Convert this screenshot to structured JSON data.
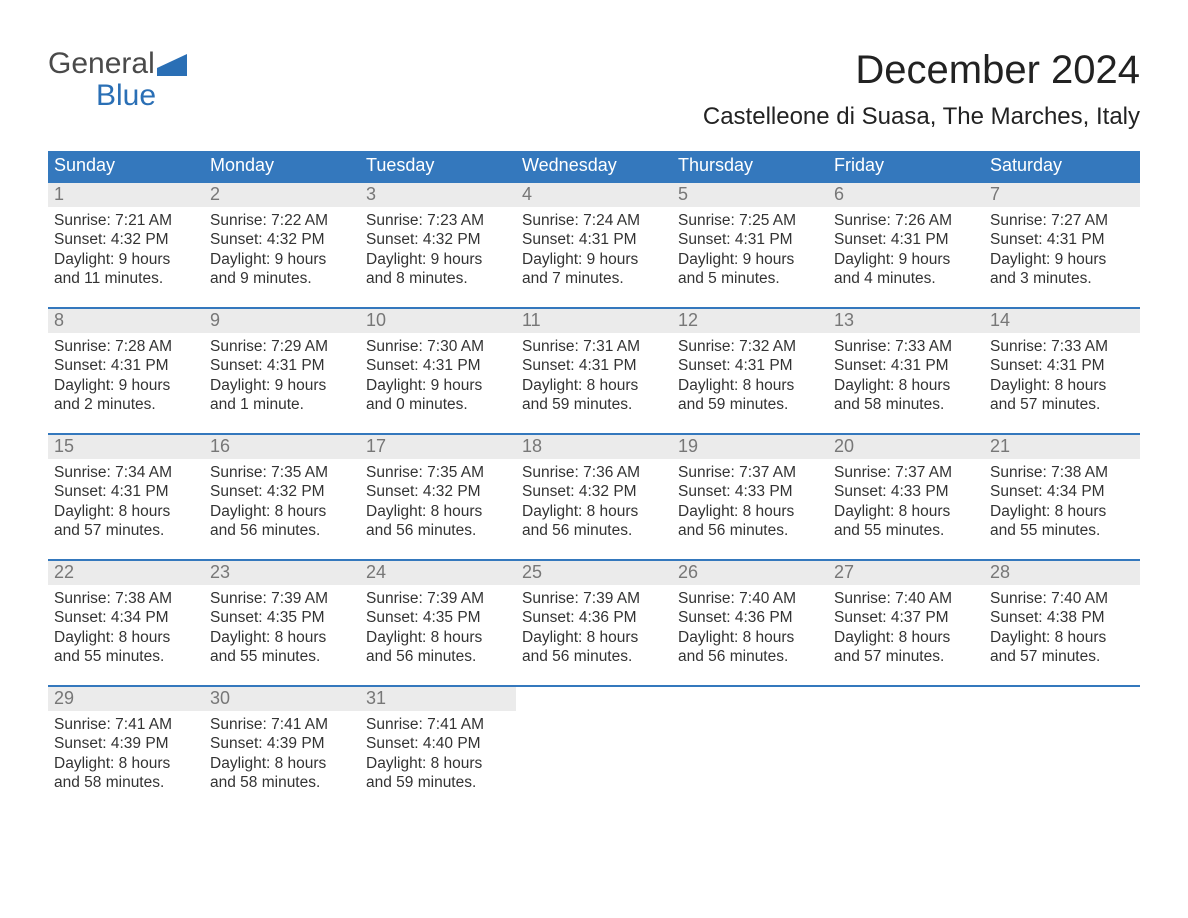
{
  "logo": {
    "top": "General",
    "bottom": "Blue"
  },
  "colors": {
    "brand_blue": "#3478bd",
    "logo_gray": "#4a4a4a",
    "logo_blue": "#2a6fb5",
    "header_text": "#222222",
    "body_text": "#333333",
    "daynum_gray": "#777777",
    "daynum_bg": "#ebebeb",
    "white": "#ffffff"
  },
  "title": "December 2024",
  "location": "Castelleone di Suasa, The Marches, Italy",
  "days_of_week": [
    "Sunday",
    "Monday",
    "Tuesday",
    "Wednesday",
    "Thursday",
    "Friday",
    "Saturday"
  ],
  "weeks": [
    [
      {
        "n": "1",
        "sr": "Sunrise: 7:21 AM",
        "ss": "Sunset: 4:32 PM",
        "d1": "Daylight: 9 hours",
        "d2": "and 11 minutes."
      },
      {
        "n": "2",
        "sr": "Sunrise: 7:22 AM",
        "ss": "Sunset: 4:32 PM",
        "d1": "Daylight: 9 hours",
        "d2": "and 9 minutes."
      },
      {
        "n": "3",
        "sr": "Sunrise: 7:23 AM",
        "ss": "Sunset: 4:32 PM",
        "d1": "Daylight: 9 hours",
        "d2": "and 8 minutes."
      },
      {
        "n": "4",
        "sr": "Sunrise: 7:24 AM",
        "ss": "Sunset: 4:31 PM",
        "d1": "Daylight: 9 hours",
        "d2": "and 7 minutes."
      },
      {
        "n": "5",
        "sr": "Sunrise: 7:25 AM",
        "ss": "Sunset: 4:31 PM",
        "d1": "Daylight: 9 hours",
        "d2": "and 5 minutes."
      },
      {
        "n": "6",
        "sr": "Sunrise: 7:26 AM",
        "ss": "Sunset: 4:31 PM",
        "d1": "Daylight: 9 hours",
        "d2": "and 4 minutes."
      },
      {
        "n": "7",
        "sr": "Sunrise: 7:27 AM",
        "ss": "Sunset: 4:31 PM",
        "d1": "Daylight: 9 hours",
        "d2": "and 3 minutes."
      }
    ],
    [
      {
        "n": "8",
        "sr": "Sunrise: 7:28 AM",
        "ss": "Sunset: 4:31 PM",
        "d1": "Daylight: 9 hours",
        "d2": "and 2 minutes."
      },
      {
        "n": "9",
        "sr": "Sunrise: 7:29 AM",
        "ss": "Sunset: 4:31 PM",
        "d1": "Daylight: 9 hours",
        "d2": "and 1 minute."
      },
      {
        "n": "10",
        "sr": "Sunrise: 7:30 AM",
        "ss": "Sunset: 4:31 PM",
        "d1": "Daylight: 9 hours",
        "d2": "and 0 minutes."
      },
      {
        "n": "11",
        "sr": "Sunrise: 7:31 AM",
        "ss": "Sunset: 4:31 PM",
        "d1": "Daylight: 8 hours",
        "d2": "and 59 minutes."
      },
      {
        "n": "12",
        "sr": "Sunrise: 7:32 AM",
        "ss": "Sunset: 4:31 PM",
        "d1": "Daylight: 8 hours",
        "d2": "and 59 minutes."
      },
      {
        "n": "13",
        "sr": "Sunrise: 7:33 AM",
        "ss": "Sunset: 4:31 PM",
        "d1": "Daylight: 8 hours",
        "d2": "and 58 minutes."
      },
      {
        "n": "14",
        "sr": "Sunrise: 7:33 AM",
        "ss": "Sunset: 4:31 PM",
        "d1": "Daylight: 8 hours",
        "d2": "and 57 minutes."
      }
    ],
    [
      {
        "n": "15",
        "sr": "Sunrise: 7:34 AM",
        "ss": "Sunset: 4:31 PM",
        "d1": "Daylight: 8 hours",
        "d2": "and 57 minutes."
      },
      {
        "n": "16",
        "sr": "Sunrise: 7:35 AM",
        "ss": "Sunset: 4:32 PM",
        "d1": "Daylight: 8 hours",
        "d2": "and 56 minutes."
      },
      {
        "n": "17",
        "sr": "Sunrise: 7:35 AM",
        "ss": "Sunset: 4:32 PM",
        "d1": "Daylight: 8 hours",
        "d2": "and 56 minutes."
      },
      {
        "n": "18",
        "sr": "Sunrise: 7:36 AM",
        "ss": "Sunset: 4:32 PM",
        "d1": "Daylight: 8 hours",
        "d2": "and 56 minutes."
      },
      {
        "n": "19",
        "sr": "Sunrise: 7:37 AM",
        "ss": "Sunset: 4:33 PM",
        "d1": "Daylight: 8 hours",
        "d2": "and 56 minutes."
      },
      {
        "n": "20",
        "sr": "Sunrise: 7:37 AM",
        "ss": "Sunset: 4:33 PM",
        "d1": "Daylight: 8 hours",
        "d2": "and 55 minutes."
      },
      {
        "n": "21",
        "sr": "Sunrise: 7:38 AM",
        "ss": "Sunset: 4:34 PM",
        "d1": "Daylight: 8 hours",
        "d2": "and 55 minutes."
      }
    ],
    [
      {
        "n": "22",
        "sr": "Sunrise: 7:38 AM",
        "ss": "Sunset: 4:34 PM",
        "d1": "Daylight: 8 hours",
        "d2": "and 55 minutes."
      },
      {
        "n": "23",
        "sr": "Sunrise: 7:39 AM",
        "ss": "Sunset: 4:35 PM",
        "d1": "Daylight: 8 hours",
        "d2": "and 55 minutes."
      },
      {
        "n": "24",
        "sr": "Sunrise: 7:39 AM",
        "ss": "Sunset: 4:35 PM",
        "d1": "Daylight: 8 hours",
        "d2": "and 56 minutes."
      },
      {
        "n": "25",
        "sr": "Sunrise: 7:39 AM",
        "ss": "Sunset: 4:36 PM",
        "d1": "Daylight: 8 hours",
        "d2": "and 56 minutes."
      },
      {
        "n": "26",
        "sr": "Sunrise: 7:40 AM",
        "ss": "Sunset: 4:36 PM",
        "d1": "Daylight: 8 hours",
        "d2": "and 56 minutes."
      },
      {
        "n": "27",
        "sr": "Sunrise: 7:40 AM",
        "ss": "Sunset: 4:37 PM",
        "d1": "Daylight: 8 hours",
        "d2": "and 57 minutes."
      },
      {
        "n": "28",
        "sr": "Sunrise: 7:40 AM",
        "ss": "Sunset: 4:38 PM",
        "d1": "Daylight: 8 hours",
        "d2": "and 57 minutes."
      }
    ],
    [
      {
        "n": "29",
        "sr": "Sunrise: 7:41 AM",
        "ss": "Sunset: 4:39 PM",
        "d1": "Daylight: 8 hours",
        "d2": "and 58 minutes."
      },
      {
        "n": "30",
        "sr": "Sunrise: 7:41 AM",
        "ss": "Sunset: 4:39 PM",
        "d1": "Daylight: 8 hours",
        "d2": "and 58 minutes."
      },
      {
        "n": "31",
        "sr": "Sunrise: 7:41 AM",
        "ss": "Sunset: 4:40 PM",
        "d1": "Daylight: 8 hours",
        "d2": "and 59 minutes."
      },
      null,
      null,
      null,
      null
    ]
  ]
}
